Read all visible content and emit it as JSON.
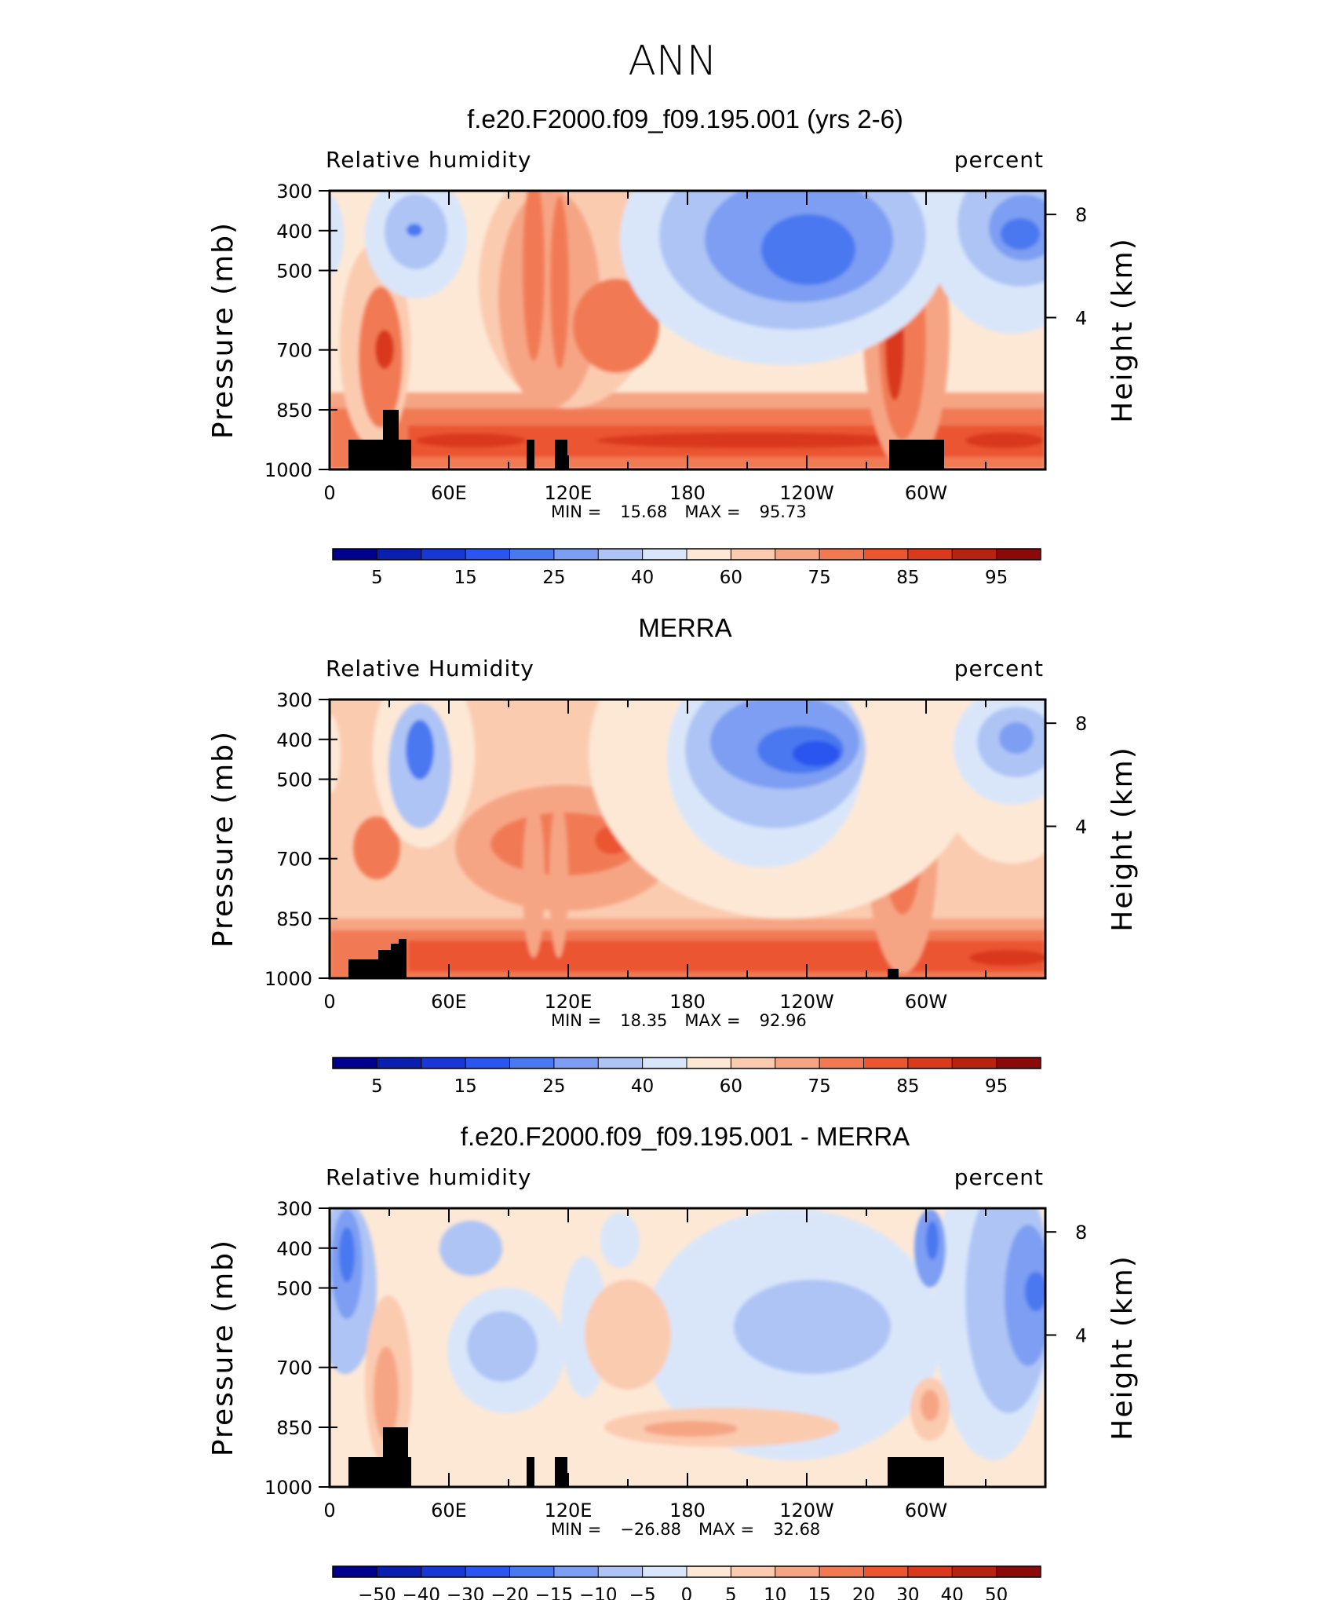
{
  "page_title": "ANN",
  "chart_data": [
    {
      "type": "heatmap",
      "title": "f.e20.F2000.f09_f09.195.001 (yrs 2-6)",
      "left_label": "Relative humidity",
      "right_label": "percent",
      "xlabel": "",
      "ylabel": "Pressure (mb)",
      "ylabel_right": "Height (km)",
      "x_ticks": [
        "0",
        "60E",
        "120E",
        "180",
        "120W",
        "60W"
      ],
      "y_ticks": [
        "300",
        "400",
        "500",
        "700",
        "850",
        "1000"
      ],
      "y_right_ticks": [
        "8",
        "4"
      ],
      "stats": {
        "min_label": "MIN =",
        "min": "15.68",
        "max_label": "MAX =",
        "max": "95.73"
      },
      "colorbar_labels": [
        "5",
        "15",
        "25",
        "40",
        "60",
        "75",
        "85",
        "95"
      ],
      "colors": [
        "#00008f",
        "#0a1fb0",
        "#1737d6",
        "#2a55ee",
        "#4a78f0",
        "#7d9ef2",
        "#aec4f5",
        "#d9e6fa",
        "#fde8d6",
        "#fbcbb0",
        "#f6a584",
        "#f17a55",
        "#eb5530",
        "#d9391c",
        "#b72311",
        "#8a0a0a"
      ]
    },
    {
      "type": "heatmap",
      "title": "MERRA",
      "left_label": "Relative Humidity",
      "right_label": "percent",
      "xlabel": "",
      "ylabel": "Pressure (mb)",
      "ylabel_right": "Height (km)",
      "x_ticks": [
        "0",
        "60E",
        "120E",
        "180",
        "120W",
        "60W"
      ],
      "y_ticks": [
        "300",
        "400",
        "500",
        "700",
        "850",
        "1000"
      ],
      "y_right_ticks": [
        "8",
        "4"
      ],
      "stats": {
        "min_label": "MIN =",
        "min": "18.35",
        "max_label": "MAX =",
        "max": "92.96"
      },
      "colorbar_labels": [
        "5",
        "15",
        "25",
        "40",
        "60",
        "75",
        "85",
        "95"
      ],
      "colors": [
        "#00008f",
        "#0a1fb0",
        "#1737d6",
        "#2a55ee",
        "#4a78f0",
        "#7d9ef2",
        "#aec4f5",
        "#d9e6fa",
        "#fde8d6",
        "#fbcbb0",
        "#f6a584",
        "#f17a55",
        "#eb5530",
        "#d9391c",
        "#b72311",
        "#8a0a0a"
      ]
    },
    {
      "type": "heatmap",
      "title": "f.e20.F2000.f09_f09.195.001 - MERRA",
      "left_label": "Relative humidity",
      "right_label": "percent",
      "xlabel": "",
      "ylabel": "Pressure (mb)",
      "ylabel_right": "Height (km)",
      "x_ticks": [
        "0",
        "60E",
        "120E",
        "180",
        "120W",
        "60W"
      ],
      "y_ticks": [
        "300",
        "400",
        "500",
        "700",
        "850",
        "1000"
      ],
      "y_right_ticks": [
        "8",
        "4"
      ],
      "stats": {
        "min_label": "MIN =",
        "min": "−26.88",
        "max_label": "MAX =",
        "max": "32.68"
      },
      "colorbar_labels": [
        "−50",
        "−40",
        "−30",
        "−20",
        "−15",
        "−10",
        "−5",
        "0",
        "5",
        "10",
        "15",
        "20",
        "30",
        "40",
        "50"
      ],
      "colors": [
        "#00008f",
        "#0a1fb0",
        "#1737d6",
        "#2a55ee",
        "#4a78f0",
        "#7d9ef2",
        "#aec4f5",
        "#d9e6fa",
        "#fde8d6",
        "#fbcbb0",
        "#f6a584",
        "#f17a55",
        "#eb5530",
        "#d9391c",
        "#b72311",
        "#8a0a0a"
      ]
    }
  ]
}
